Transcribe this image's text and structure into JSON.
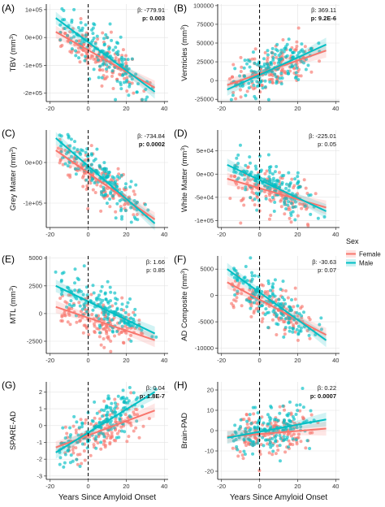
{
  "legend": {
    "title": "Sex",
    "items": [
      {
        "name": "Female",
        "color": "#F8766D"
      },
      {
        "name": "Male",
        "color": "#00BFC4"
      }
    ]
  },
  "chart_data": [
    {
      "label": "(A)",
      "type": "scatter",
      "ylabel": "TBV  (mm³)",
      "xlabel": "",
      "xlim": [
        -22,
        42
      ],
      "ylim": [
        -230000,
        120000
      ],
      "xticks": [
        -20,
        0,
        20,
        40
      ],
      "yticks": [
        -200000,
        -100000,
        0,
        100000
      ],
      "ytick_labels": [
        "-2e+05",
        "-1e+05",
        "0e+00",
        "1e+05"
      ],
      "beta": "β: -779.91",
      "p": "p: 0.003",
      "p_bold": true,
      "series": [
        {
          "name": "Female",
          "fit": {
            "x": [
              -17,
              35
            ],
            "y": [
              20000,
              -180000
            ]
          }
        },
        {
          "name": "Male",
          "fit": {
            "x": [
              -17,
              35
            ],
            "y": [
              70000,
              -195000
            ]
          }
        }
      ]
    },
    {
      "label": "(B)",
      "type": "scatter",
      "ylabel": "Ventricles  (mm³)",
      "xlabel": "",
      "xlim": [
        -22,
        42
      ],
      "ylim": [
        -28000,
        102000
      ],
      "xticks": [
        -20,
        0,
        20,
        40
      ],
      "yticks": [
        -25000,
        0,
        25000,
        50000,
        75000,
        100000
      ],
      "ytick_labels": [
        "-25000",
        "0",
        "25000",
        "50000",
        "75000",
        "100000"
      ],
      "beta": "β: 369.11",
      "p": "p: 9.2E-6",
      "p_bold": true,
      "series": [
        {
          "name": "Female",
          "fit": {
            "x": [
              -17,
              35
            ],
            "y": [
              -6000,
              40000
            ]
          }
        },
        {
          "name": "Male",
          "fit": {
            "x": [
              -17,
              35
            ],
            "y": [
              -12000,
              48000
            ]
          }
        }
      ]
    },
    {
      "label": "(C)",
      "type": "scatter",
      "ylabel": "Grey Matter  (mm³)",
      "xlabel": "",
      "xlim": [
        -22,
        42
      ],
      "ylim": [
        -160000,
        80000
      ],
      "xticks": [
        -20,
        0,
        20,
        40
      ],
      "yticks": [
        -100000,
        0
      ],
      "ytick_labels": [
        "-1e+05",
        "0e+00"
      ],
      "beta": "β: -734.84",
      "p": "p: 0.0002",
      "p_bold": true,
      "series": [
        {
          "name": "Female",
          "fit": {
            "x": [
              -17,
              35
            ],
            "y": [
              30000,
              -140000
            ]
          }
        },
        {
          "name": "Male",
          "fit": {
            "x": [
              -17,
              35
            ],
            "y": [
              60000,
              -150000
            ]
          }
        }
      ]
    },
    {
      "label": "(D)",
      "type": "scatter",
      "ylabel": "White Matter  (mm³)",
      "xlabel": "",
      "xlim": [
        -22,
        42
      ],
      "ylim": [
        -115000,
        95000
      ],
      "xticks": [
        -20,
        0,
        20,
        40
      ],
      "yticks": [
        -100000,
        -50000,
        0,
        50000
      ],
      "ytick_labels": [
        "-1e+05",
        "-5e+04",
        "0e+00",
        "5e+04"
      ],
      "beta": "β: -225.01",
      "p": "p: 0.05",
      "p_bold": false,
      "series": [
        {
          "name": "Female",
          "fit": {
            "x": [
              -17,
              35
            ],
            "y": [
              -10000,
              -72000
            ]
          }
        },
        {
          "name": "Male",
          "fit": {
            "x": [
              -17,
              35
            ],
            "y": [
              20000,
              -80000
            ]
          }
        }
      ]
    },
    {
      "label": "(E)",
      "type": "scatter",
      "ylabel": "MTL  (mm³)",
      "xlabel": "",
      "xlim": [
        -22,
        42
      ],
      "ylim": [
        -3600,
        5200
      ],
      "xticks": [
        -20,
        0,
        20,
        40
      ],
      "yticks": [
        -2500,
        0,
        2500,
        5000
      ],
      "ytick_labels": [
        "-2500",
        "0",
        "2500",
        "5000"
      ],
      "beta": "β: 1.66",
      "p": "p: 0.85",
      "p_bold": false,
      "series": [
        {
          "name": "Female",
          "fit": {
            "x": [
              -17,
              35
            ],
            "y": [
              600,
              -2400
            ]
          }
        },
        {
          "name": "Male",
          "fit": {
            "x": [
              -17,
              35
            ],
            "y": [
              2500,
              -1800
            ]
          }
        }
      ]
    },
    {
      "label": "(F)",
      "type": "scatter",
      "ylabel": "AD Composite  (mm³)",
      "xlabel": "",
      "xlim": [
        -22,
        42
      ],
      "ylim": [
        -11000,
        7500
      ],
      "xticks": [
        -20,
        0,
        20,
        40
      ],
      "yticks": [
        -10000,
        -5000,
        0,
        5000
      ],
      "ytick_labels": [
        "-10000",
        "-5000",
        "0",
        "5000"
      ],
      "beta": "β: -30.63",
      "p": "p: 0.07",
      "p_bold": false,
      "series": [
        {
          "name": "Female",
          "fit": {
            "x": [
              -17,
              35
            ],
            "y": [
              2500,
              -7500
            ]
          }
        },
        {
          "name": "Male",
          "fit": {
            "x": [
              -17,
              35
            ],
            "y": [
              5000,
              -8500
            ]
          }
        }
      ]
    },
    {
      "label": "(G)",
      "type": "scatter",
      "ylabel": "SPARE-AD",
      "xlabel": "Years Since Amyloid Onset",
      "xlim": [
        -22,
        42
      ],
      "ylim": [
        -3.2,
        2.6
      ],
      "xticks": [
        -20,
        0,
        20,
        40
      ],
      "yticks": [
        -3,
        -2,
        -1,
        0,
        1,
        2
      ],
      "ytick_labels": [
        "-3",
        "-2",
        "-1",
        "0",
        "1",
        "2"
      ],
      "beta": "β: 0.04",
      "p": "p: 1.8E-7",
      "p_bold": true,
      "series": [
        {
          "name": "Female",
          "fit": {
            "x": [
              -17,
              35
            ],
            "y": [
              -1.3,
              0.9
            ]
          }
        },
        {
          "name": "Male",
          "fit": {
            "x": [
              -17,
              35
            ],
            "y": [
              -1.6,
              2.0
            ]
          }
        }
      ]
    },
    {
      "label": "(H)",
      "type": "scatter",
      "ylabel": "Brain-PAD",
      "xlabel": "Years Since Amyloid Onset",
      "xlim": [
        -22,
        42
      ],
      "ylim": [
        -24,
        24
      ],
      "xticks": [
        -20,
        0,
        20,
        40
      ],
      "yticks": [
        -20,
        -10,
        0,
        10,
        20
      ],
      "ytick_labels": [
        "-20",
        "-10",
        "0",
        "10",
        "20"
      ],
      "beta": "β: 0.22",
      "p": "p: 0.0007",
      "p_bold": true,
      "series": [
        {
          "name": "Female",
          "fit": {
            "x": [
              -17,
              35
            ],
            "y": [
              -3,
              1
            ]
          }
        },
        {
          "name": "Male",
          "fit": {
            "x": [
              -17,
              35
            ],
            "y": [
              -3.5,
              5.5
            ]
          }
        }
      ]
    }
  ]
}
